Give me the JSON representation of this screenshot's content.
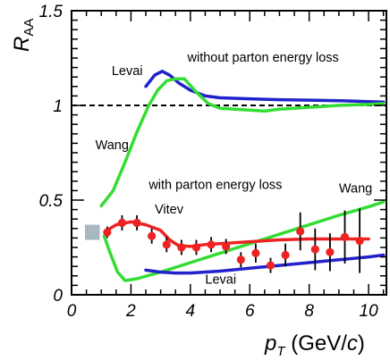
{
  "chart_data": {
    "type": "line",
    "title": "",
    "xlabel": {
      "symbol": "p",
      "subscript": "T",
      "unit_pre": " (GeV/",
      "unit_italic": "c",
      "unit_post": ")"
    },
    "ylabel": {
      "symbol": "R",
      "subscript": "AA"
    },
    "xlim": [
      0,
      10.6
    ],
    "ylim": [
      0,
      1.5
    ],
    "x_ticks": [
      0,
      2,
      4,
      6,
      8,
      10
    ],
    "y_ticks": [
      0,
      0.5,
      1,
      1.5
    ],
    "x_tick_labels": [
      "0",
      "2",
      "4",
      "6",
      "8",
      "10"
    ],
    "y_tick_labels": [
      "0",
      "0.5",
      "1",
      "1.5"
    ],
    "reference_line": {
      "y": 1,
      "style": "dashed",
      "color": "#000000"
    },
    "annotations": [
      {
        "text": "without parton energy loss",
        "x": 3.9,
        "y": 1.23
      },
      {
        "text": "with parton energy loss",
        "x": 2.6,
        "y": 0.56
      },
      {
        "text": "Levai",
        "x": 1.35,
        "y": 1.16
      },
      {
        "text": "Wang",
        "x": 0.8,
        "y": 0.77
      },
      {
        "text": "Vitev",
        "x": 2.8,
        "y": 0.43
      },
      {
        "text": "Wang",
        "x": 9.0,
        "y": 0.54
      },
      {
        "text": "Levai",
        "x": 4.5,
        "y": 0.06
      }
    ],
    "series": [
      {
        "color": "#2222cc",
        "points": [
          [
            2.5,
            1.1
          ],
          [
            2.8,
            1.16
          ],
          [
            3.05,
            1.18
          ],
          [
            3.3,
            1.16
          ],
          [
            3.6,
            1.12
          ],
          [
            4.0,
            1.08
          ],
          [
            4.5,
            1.05
          ],
          [
            5.0,
            1.04
          ],
          [
            6.0,
            1.035
          ],
          [
            7.0,
            1.03
          ],
          [
            8.0,
            1.028
          ],
          [
            9.0,
            1.025
          ],
          [
            10.0,
            1.02
          ],
          [
            10.5,
            1.018
          ]
        ]
      },
      {
        "color": "#33dd33",
        "points": [
          [
            1.0,
            0.47
          ],
          [
            1.4,
            0.55
          ],
          [
            1.8,
            0.7
          ],
          [
            2.2,
            0.86
          ],
          [
            2.6,
            1.0
          ],
          [
            2.9,
            1.08
          ],
          [
            3.2,
            1.13
          ],
          [
            3.5,
            1.14
          ],
          [
            3.8,
            1.14
          ],
          [
            4.2,
            1.07
          ],
          [
            4.6,
            1.01
          ],
          [
            5.0,
            0.985
          ],
          [
            5.5,
            0.98
          ],
          [
            6.0,
            0.975
          ],
          [
            6.5,
            0.97
          ],
          [
            7.0,
            0.98
          ],
          [
            8.0,
            0.99
          ],
          [
            9.0,
            1.0
          ],
          [
            10.0,
            1.005
          ],
          [
            10.5,
            1.01
          ]
        ]
      },
      {
        "color": "#33dd33",
        "points": [
          [
            1.1,
            0.31
          ],
          [
            1.3,
            0.22
          ],
          [
            1.55,
            0.12
          ],
          [
            1.8,
            0.075
          ],
          [
            2.2,
            0.085
          ],
          [
            3.0,
            0.12
          ],
          [
            4.0,
            0.17
          ],
          [
            5.0,
            0.22
          ],
          [
            6.0,
            0.27
          ],
          [
            7.0,
            0.32
          ],
          [
            8.0,
            0.37
          ],
          [
            9.0,
            0.42
          ],
          [
            10.0,
            0.465
          ],
          [
            10.5,
            0.49
          ]
        ]
      },
      {
        "color": "#ee2222",
        "points": [
          [
            1.2,
            0.34
          ],
          [
            1.5,
            0.37
          ],
          [
            2.0,
            0.385
          ],
          [
            2.5,
            0.37
          ],
          [
            3.0,
            0.34
          ],
          [
            3.3,
            0.29
          ],
          [
            3.6,
            0.26
          ],
          [
            4.0,
            0.255
          ],
          [
            4.5,
            0.265
          ],
          [
            5.0,
            0.27
          ],
          [
            6.0,
            0.28
          ],
          [
            7.0,
            0.29
          ],
          [
            8.0,
            0.295
          ],
          [
            9.0,
            0.295
          ],
          [
            10.0,
            0.295
          ]
        ]
      },
      {
        "color": "#2222cc",
        "points": [
          [
            2.5,
            0.13
          ],
          [
            3.0,
            0.12
          ],
          [
            3.5,
            0.115
          ],
          [
            4.0,
            0.115
          ],
          [
            5.0,
            0.125
          ],
          [
            6.0,
            0.14
          ],
          [
            7.0,
            0.155
          ],
          [
            8.0,
            0.17
          ],
          [
            9.0,
            0.185
          ],
          [
            10.0,
            0.2
          ],
          [
            10.5,
            0.21
          ]
        ]
      }
    ],
    "data_points": {
      "color": "#ee2222",
      "points": [
        {
          "x": 1.2,
          "y": 0.33,
          "err": 0.03
        },
        {
          "x": 1.7,
          "y": 0.38,
          "err": 0.04
        },
        {
          "x": 2.2,
          "y": 0.38,
          "err": 0.04
        },
        {
          "x": 2.7,
          "y": 0.31,
          "err": 0.04
        },
        {
          "x": 3.2,
          "y": 0.265,
          "err": 0.04
        },
        {
          "x": 3.7,
          "y": 0.25,
          "err": 0.04
        },
        {
          "x": 4.2,
          "y": 0.25,
          "err": 0.04
        },
        {
          "x": 4.7,
          "y": 0.265,
          "err": 0.04
        },
        {
          "x": 5.2,
          "y": 0.255,
          "err": 0.04
        },
        {
          "x": 5.7,
          "y": 0.185,
          "err": 0.04
        },
        {
          "x": 6.2,
          "y": 0.22,
          "err": 0.05
        },
        {
          "x": 6.7,
          "y": 0.155,
          "err": 0.04
        },
        {
          "x": 7.2,
          "y": 0.21,
          "err": 0.06
        },
        {
          "x": 7.7,
          "y": 0.335,
          "err": 0.1
        },
        {
          "x": 8.2,
          "y": 0.24,
          "err": 0.11
        },
        {
          "x": 8.7,
          "y": 0.225,
          "err": 0.1
        },
        {
          "x": 9.2,
          "y": 0.305,
          "err": 0.14
        },
        {
          "x": 9.7,
          "y": 0.285,
          "err": 0.17
        }
      ]
    },
    "systematic_box": {
      "x0": 0.45,
      "x1": 0.95,
      "y0": 0.29,
      "y1": 0.37,
      "color": "#a8b8c0"
    }
  }
}
